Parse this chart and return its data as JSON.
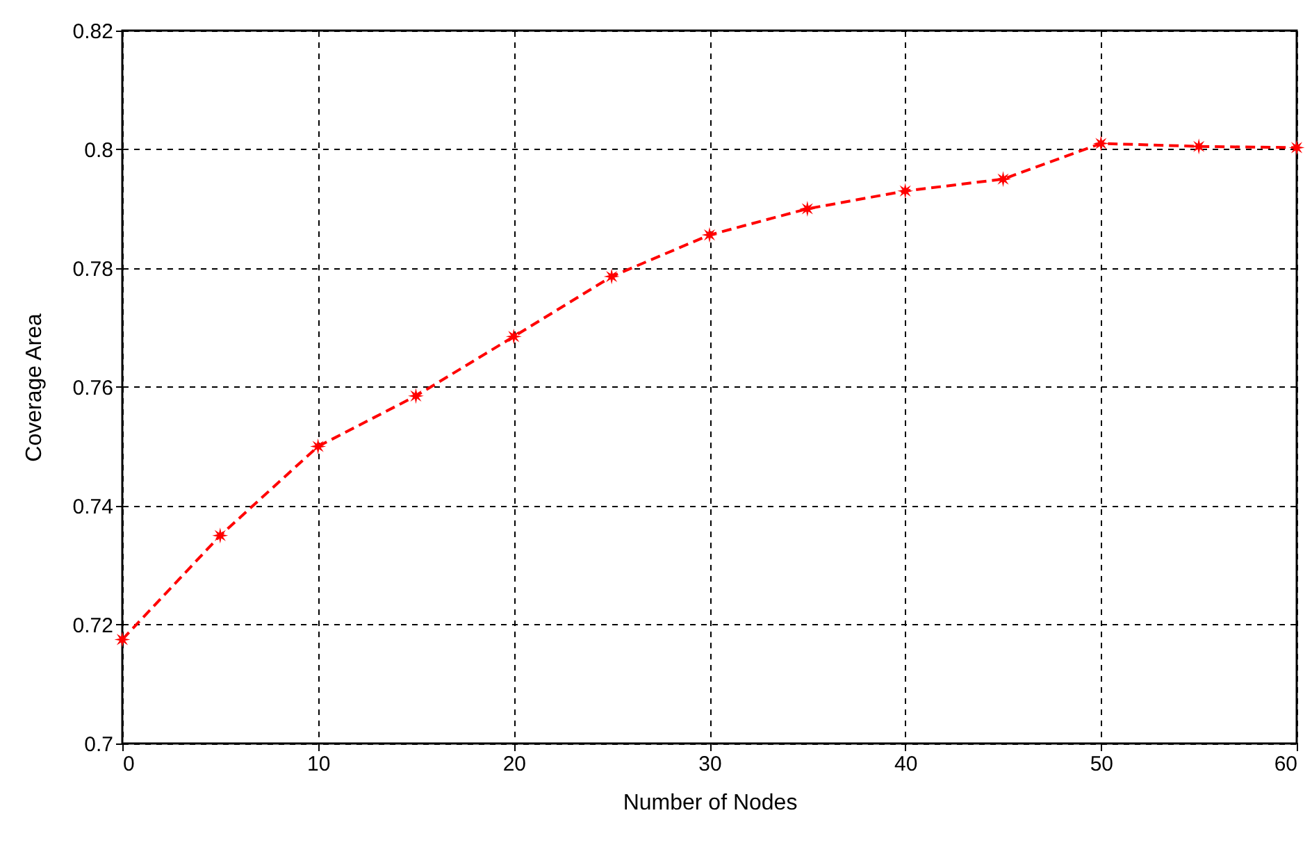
{
  "chart_data": {
    "type": "line",
    "xlabel": "Number of Nodes",
    "ylabel": "Coverage Area",
    "x": [
      0,
      5,
      10,
      15,
      20,
      25,
      30,
      35,
      40,
      45,
      50,
      55,
      60
    ],
    "series": [
      {
        "color": "#ff0000",
        "values": [
          0.7175,
          0.735,
          0.75,
          0.7585,
          0.7685,
          0.7786,
          0.7856,
          0.79,
          0.793,
          0.795,
          0.801,
          0.8005,
          0.8003
        ]
      }
    ],
    "xlim": [
      0,
      60
    ],
    "xticks": [
      0,
      10,
      20,
      30,
      40,
      50,
      60
    ],
    "ylim": [
      0.7,
      0.82
    ],
    "yticks": [
      {
        "value": 0.7,
        "label": "0.7"
      },
      0.72,
      0.74,
      0.76,
      0.78,
      {
        "value": 0.8,
        "label": "0.8"
      },
      0.82
    ],
    "grid": true,
    "marker": "star",
    "line_style": "dashed"
  }
}
